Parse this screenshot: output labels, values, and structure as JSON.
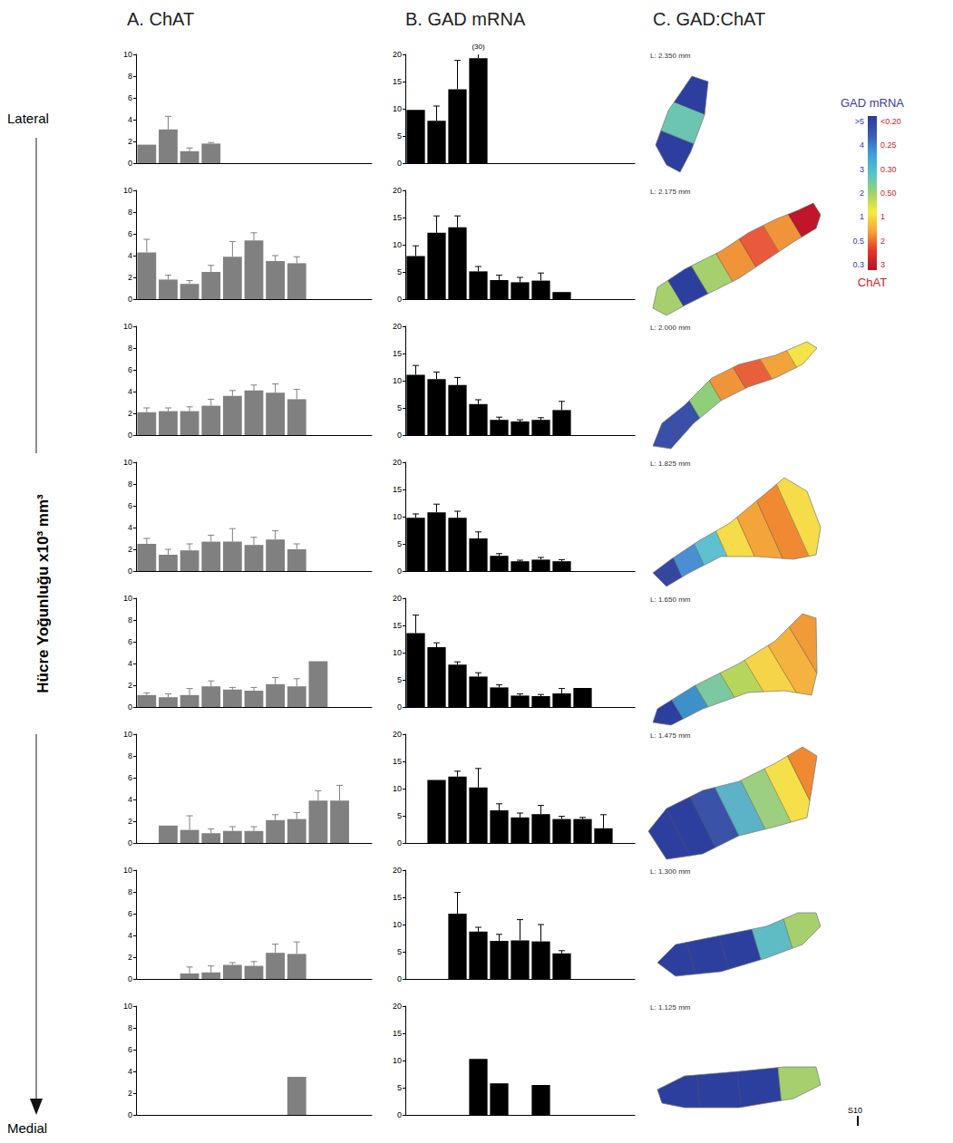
{
  "column_titles": [
    "A. ChAT",
    "B. GAD mRNA",
    "C. GAD:ChAT"
  ],
  "side_labels": {
    "top": "Lateral",
    "bottom": "Medial"
  },
  "y_axis_title": "Hücre Yoğunluğu  x10³  mm³",
  "chart_data": [
    {
      "type": "bar",
      "categories": [
        null,
        null,
        null,
        null,
        null,
        null,
        null,
        null,
        null,
        null,
        null
      ],
      "values": [
        1.7,
        3.1,
        1.1,
        1.8,
        null,
        null,
        null,
        null,
        null,
        null,
        null
      ],
      "errors": [
        null,
        1.2,
        0.3,
        0.1,
        null,
        null,
        null,
        null,
        null,
        null,
        null
      ],
      "color": "#808080",
      "ylim": [
        0,
        10
      ],
      "yticks": [
        0,
        2,
        4,
        6,
        8,
        10
      ],
      "grid": false,
      "tick_labels": "y"
    },
    {
      "type": "bar",
      "categories": [
        null,
        null,
        null,
        null,
        null,
        null,
        null,
        null,
        null,
        null,
        null
      ],
      "values": [
        9.8,
        7.8,
        13.6,
        19.3,
        null,
        null,
        null,
        null,
        null,
        null,
        null
      ],
      "errors": [
        null,
        2.7,
        5.3,
        10.7,
        null,
        null,
        null,
        null,
        null,
        null,
        null
      ],
      "color": "#000000",
      "ylim": [
        0,
        20
      ],
      "yticks": [
        0,
        5,
        10,
        15,
        20
      ],
      "grid": false,
      "tick_labels": "y",
      "annotations": [
        {
          "index": 3,
          "text": "(30)"
        }
      ]
    },
    {
      "type": "bar",
      "categories": [
        null,
        null,
        null,
        null,
        null,
        null,
        null,
        null,
        null,
        null,
        null
      ],
      "values": [
        4.3,
        1.8,
        1.4,
        2.5,
        3.9,
        5.4,
        3.5,
        3.3,
        null,
        null,
        null
      ],
      "errors": [
        1.2,
        0.4,
        0.3,
        0.6,
        1.4,
        0.7,
        0.5,
        0.6,
        null,
        null,
        null
      ],
      "color": "#808080",
      "ylim": [
        0,
        10
      ],
      "yticks": [
        0,
        2,
        4,
        6,
        8,
        10
      ],
      "grid": false,
      "tick_labels": "y"
    },
    {
      "type": "bar",
      "categories": [
        null,
        null,
        null,
        null,
        null,
        null,
        null,
        null,
        null,
        null,
        null
      ],
      "values": [
        7.9,
        12.2,
        13.2,
        5.1,
        3.5,
        3.1,
        3.4,
        1.3,
        null,
        null,
        null
      ],
      "errors": [
        1.9,
        3.1,
        2.1,
        0.9,
        0.9,
        0.9,
        1.4,
        null,
        null,
        null,
        null
      ],
      "color": "#000000",
      "ylim": [
        0,
        20
      ],
      "yticks": [
        0,
        5,
        10,
        15,
        20
      ],
      "grid": false,
      "tick_labels": "y"
    },
    {
      "type": "bar",
      "categories": [
        null,
        null,
        null,
        null,
        null,
        null,
        null,
        null,
        null,
        null,
        null
      ],
      "values": [
        2.1,
        2.2,
        2.2,
        2.7,
        3.6,
        4.1,
        3.9,
        3.3,
        null,
        null,
        null
      ],
      "errors": [
        0.4,
        0.3,
        0.4,
        0.6,
        0.5,
        0.5,
        0.8,
        0.9,
        null,
        null,
        null
      ],
      "color": "#808080",
      "ylim": [
        0,
        10
      ],
      "yticks": [
        0,
        2,
        4,
        6,
        8,
        10
      ],
      "grid": false,
      "tick_labels": "y"
    },
    {
      "type": "bar",
      "categories": [
        null,
        null,
        null,
        null,
        null,
        null,
        null,
        null,
        null,
        null,
        null
      ],
      "values": [
        11.1,
        10.3,
        9.2,
        5.7,
        2.8,
        2.5,
        2.8,
        4.6,
        null,
        null,
        null
      ],
      "errors": [
        1.7,
        1.3,
        1.4,
        0.8,
        0.5,
        0.3,
        0.4,
        1.6,
        null,
        null,
        null
      ],
      "color": "#000000",
      "ylim": [
        0,
        20
      ],
      "yticks": [
        0,
        5,
        10,
        15,
        20
      ],
      "grid": false,
      "tick_labels": "y"
    },
    {
      "type": "bar",
      "categories": [
        null,
        null,
        null,
        null,
        null,
        null,
        null,
        null,
        null,
        null,
        null
      ],
      "values": [
        2.5,
        1.5,
        1.9,
        2.7,
        2.7,
        2.4,
        2.9,
        2.0,
        null,
        null,
        null
      ],
      "errors": [
        0.5,
        0.5,
        0.6,
        0.6,
        1.2,
        0.7,
        0.8,
        0.5,
        null,
        null,
        null
      ],
      "color": "#808080",
      "ylim": [
        0,
        10
      ],
      "yticks": [
        0,
        2,
        4,
        6,
        8,
        10
      ],
      "grid": false,
      "tick_labels": "y"
    },
    {
      "type": "bar",
      "categories": [
        null,
        null,
        null,
        null,
        null,
        null,
        null,
        null,
        null,
        null,
        null
      ],
      "values": [
        9.8,
        10.8,
        9.8,
        6.0,
        2.8,
        1.8,
        2.1,
        1.8,
        null,
        null,
        null
      ],
      "errors": [
        0.7,
        1.5,
        1.2,
        1.2,
        0.4,
        0.2,
        0.4,
        0.3,
        null,
        null,
        null
      ],
      "color": "#000000",
      "ylim": [
        0,
        20
      ],
      "yticks": [
        0,
        5,
        10,
        15,
        20
      ],
      "grid": false,
      "tick_labels": "y"
    },
    {
      "type": "bar",
      "categories": [
        null,
        null,
        null,
        null,
        null,
        null,
        null,
        null,
        null,
        null,
        null
      ],
      "values": [
        1.1,
        0.9,
        1.1,
        1.9,
        1.6,
        1.5,
        2.1,
        1.9,
        4.2,
        null,
        null
      ],
      "errors": [
        0.2,
        0.3,
        0.6,
        0.5,
        0.2,
        0.3,
        0.6,
        0.7,
        null,
        null,
        null
      ],
      "color": "#808080",
      "ylim": [
        0,
        10
      ],
      "yticks": [
        0,
        2,
        4,
        6,
        8,
        10
      ],
      "grid": false,
      "tick_labels": "y"
    },
    {
      "type": "bar",
      "categories": [
        null,
        null,
        null,
        null,
        null,
        null,
        null,
        null,
        null,
        null,
        null
      ],
      "values": [
        13.6,
        11.0,
        7.8,
        5.6,
        3.6,
        2.1,
        2.0,
        2.5,
        3.5,
        null,
        null
      ],
      "errors": [
        3.3,
        0.8,
        0.5,
        0.7,
        0.5,
        0.3,
        0.3,
        0.9,
        null,
        null,
        null
      ],
      "color": "#000000",
      "ylim": [
        0,
        20
      ],
      "yticks": [
        0,
        5,
        10,
        15,
        20
      ],
      "grid": false,
      "tick_labels": "y"
    },
    {
      "type": "bar",
      "categories": [
        null,
        null,
        null,
        null,
        null,
        null,
        null,
        null,
        null,
        null,
        null
      ],
      "values": [
        null,
        1.6,
        1.2,
        0.9,
        1.1,
        1.1,
        2.1,
        2.2,
        3.9,
        3.9,
        null
      ],
      "errors": [
        null,
        null,
        1.3,
        0.4,
        0.4,
        0.4,
        0.5,
        0.6,
        0.9,
        1.4,
        null
      ],
      "color": "#808080",
      "ylim": [
        0,
        10
      ],
      "yticks": [
        0,
        2,
        4,
        6,
        8,
        10
      ],
      "grid": false,
      "tick_labels": "y"
    },
    {
      "type": "bar",
      "categories": [
        null,
        null,
        null,
        null,
        null,
        null,
        null,
        null,
        null,
        null,
        null
      ],
      "values": [
        null,
        11.6,
        12.2,
        10.2,
        6.0,
        4.7,
        5.3,
        4.4,
        4.4,
        2.7,
        null
      ],
      "errors": [
        null,
        null,
        1.0,
        3.5,
        1.2,
        0.8,
        1.6,
        0.5,
        0.3,
        2.5,
        null
      ],
      "color": "#000000",
      "ylim": [
        0,
        20
      ],
      "yticks": [
        0,
        5,
        10,
        15,
        20
      ],
      "grid": false,
      "tick_labels": "y"
    },
    {
      "type": "bar",
      "categories": [
        null,
        null,
        null,
        null,
        null,
        null,
        null,
        null,
        null,
        null,
        null
      ],
      "values": [
        null,
        null,
        0.5,
        0.6,
        1.3,
        1.2,
        2.4,
        2.3,
        null,
        null,
        null
      ],
      "errors": [
        null,
        null,
        0.6,
        0.6,
        0.2,
        0.4,
        0.8,
        1.1,
        null,
        null,
        null
      ],
      "color": "#808080",
      "ylim": [
        0,
        10
      ],
      "yticks": [
        0,
        2,
        4,
        6,
        8,
        10
      ],
      "grid": false,
      "tick_labels": "y"
    },
    {
      "type": "bar",
      "categories": [
        null,
        null,
        null,
        null,
        null,
        null,
        null,
        null,
        null,
        null,
        null
      ],
      "values": [
        null,
        null,
        12.0,
        8.7,
        7.0,
        7.1,
        6.9,
        4.7,
        null,
        null,
        null
      ],
      "errors": [
        null,
        null,
        3.9,
        0.8,
        1.2,
        3.8,
        3.1,
        0.5,
        null,
        null,
        null
      ],
      "color": "#000000",
      "ylim": [
        0,
        20
      ],
      "yticks": [
        0,
        5,
        10,
        15,
        20
      ],
      "grid": false,
      "tick_labels": "y"
    },
    {
      "type": "bar",
      "categories": [
        null,
        null,
        null,
        null,
        null,
        null,
        null,
        null,
        null,
        null,
        null
      ],
      "values": [
        null,
        null,
        null,
        null,
        null,
        null,
        null,
        3.5,
        null,
        null,
        null
      ],
      "errors": [
        null,
        null,
        null,
        null,
        null,
        null,
        null,
        null,
        null,
        null,
        null
      ],
      "color": "#808080",
      "ylim": [
        0,
        10
      ],
      "yticks": [
        0,
        2,
        4,
        6,
        8,
        10
      ],
      "grid": false,
      "tick_labels": "y"
    },
    {
      "type": "bar",
      "categories": [
        null,
        null,
        null,
        null,
        null,
        null,
        null,
        null,
        null,
        null,
        null
      ],
      "values": [
        null,
        null,
        null,
        10.3,
        5.8,
        null,
        5.5,
        null,
        null,
        null,
        null
      ],
      "errors": [
        null,
        null,
        null,
        null,
        null,
        null,
        null,
        null,
        null,
        null,
        null
      ],
      "color": "#000000",
      "ylim": [
        0,
        20
      ],
      "yticks": [
        0,
        5,
        10,
        15,
        20
      ],
      "grid": false,
      "tick_labels": "y"
    }
  ],
  "sections": [
    {
      "label": "L: 2.350 mm",
      "colors": [
        "#2d3f9e",
        "#6cc5b0",
        "#2d3f9e"
      ]
    },
    {
      "label": "L: 2.175 mm",
      "colors": [
        "#a6d06e",
        "#2d3f9e",
        "#a6d06e",
        "#f0943a",
        "#e85a3a",
        "#f0943a",
        "#c0152b"
      ]
    },
    {
      "label": "L: 2.000 mm",
      "colors": [
        "#3a4fa8",
        "#3a4fa8",
        "#8fcf7a",
        "#f0943a",
        "#e8603a",
        "#f2a33a",
        "#f5e34a"
      ]
    },
    {
      "label": "L: 1.825 mm",
      "colors": [
        "#35469f",
        "#4a90d0",
        "#5fc0d0",
        "#f5dc48",
        "#f4a53a",
        "#ef8a33",
        "#f5dc48"
      ]
    },
    {
      "label": "L: 1.650 mm",
      "colors": [
        "#2d3f9e",
        "#3f8fc9",
        "#7cc8a0",
        "#b6d55d",
        "#f5d448",
        "#f4b33e",
        "#f09a38"
      ]
    },
    {
      "label": "L: 1.475 mm",
      "colors": [
        "#2d3f9e",
        "#2d3f9e",
        "#3a52a8",
        "#5cb3c7",
        "#9ccf80",
        "#f5e04a",
        "#ef8a33"
      ]
    },
    {
      "label": "L: 1.300 mm",
      "colors": [
        "#2d3f9e",
        "#2d3f9e",
        "#2d3f9e",
        "#5fbcc4",
        "#a6d06e"
      ]
    },
    {
      "label": "L: 1.125 mm",
      "colors": [
        "#2d3f9e",
        "#2d3f9e",
        "#2d3f9e",
        "#a6d06e"
      ]
    }
  ],
  "colorbar": {
    "title_top": "GAD mRNA",
    "title_bottom": "ChAT",
    "top_labels": [
      ">5",
      "4",
      "3",
      "2",
      "1",
      "0.5",
      "0.3"
    ],
    "bottom_labels": [
      "<0.20",
      "0.25",
      "0.30",
      "0.50",
      "1",
      "2",
      "3"
    ],
    "colors": [
      "#2b3a97",
      "#3b5bb5",
      "#3ea0dc",
      "#52c7c8",
      "#9fd26a",
      "#f7ec3c",
      "#f6a13a",
      "#e8332a",
      "#b21429"
    ],
    "top_color": "#3a3aa8",
    "bottom_color": "#d0202a"
  },
  "annotations": [
    "S10"
  ]
}
